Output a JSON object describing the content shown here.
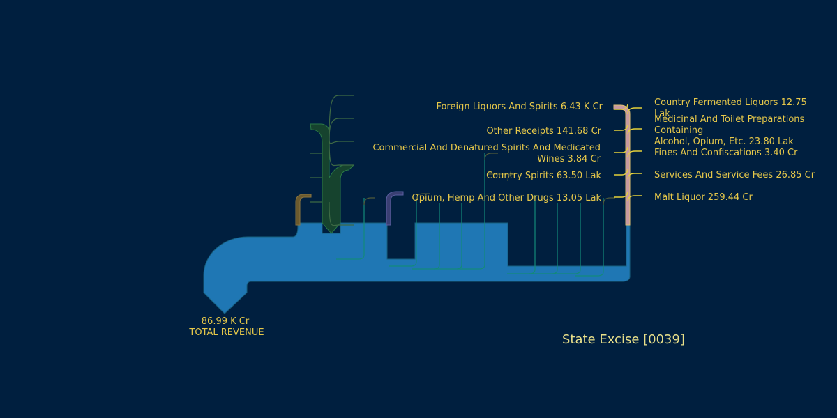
{
  "chart_data": {
    "type": "sankey",
    "title": "State Excise [0039]",
    "total": {
      "value_label": "86.99 K Cr",
      "label": "TOTAL REVENUE",
      "value_cr": 86990
    },
    "left_items": [
      {
        "name": "Foreign Liquors And Spirits",
        "value_label": "6.43 K Cr",
        "value_cr": 6430
      },
      {
        "name": "Other Receipts",
        "value_label": "141.68 Cr",
        "value_cr": 141.68
      },
      {
        "name": "Commercial And Denatured Spirits And Medicated Wines",
        "value_label": "3.84 Cr",
        "value_cr": 3.84
      },
      {
        "name": "Country Spirits",
        "value_label": "63.50 Lak",
        "value_cr": 0.635
      },
      {
        "name": "Opium, Hemp And Other Drugs",
        "value_label": "13.05 Lak",
        "value_cr": 0.1305
      }
    ],
    "right_items": [
      {
        "name": "Country Fermented Liquors",
        "value_label": "12.75 Lak",
        "value_cr": 0.1275
      },
      {
        "name": "Medicinal And Toilet Preparations Containing Alcohol, Opium, Etc.",
        "value_label": "23.80 Lak",
        "value_cr": 0.238
      },
      {
        "name": "Fines And Confiscations",
        "value_label": "3.40 Cr",
        "value_cr": 3.4
      },
      {
        "name": "Services And Service Fees",
        "value_label": "26.85 Cr",
        "value_cr": 26.85
      },
      {
        "name": "Malt Liquor",
        "value_label": "259.44 Cr",
        "value_cr": 259.44
      }
    ]
  },
  "labels": {
    "total_value": "86.99 K Cr",
    "total_name": "TOTAL REVENUE",
    "title": "State Excise [0039]",
    "l0": "Foreign Liquors And Spirits 6.43 K Cr",
    "l1": "Other Receipts 141.68 Cr",
    "l2a": "Commercial And Denatured Spirits And Medicated",
    "l2b": "Wines 3.84 Cr",
    "l3": "Country Spirits 63.50 Lak",
    "l4": "Opium, Hemp And Other Drugs 13.05 Lak",
    "r0a": "Country Fermented Liquors 12.75",
    "r0b": "Lak",
    "r1a": "Medicinal And Toilet Preparations",
    "r1b": "Containing",
    "r1c": "Alcohol, Opium, Etc. 23.80 Lak",
    "r2": "Fines And Confiscations 3.40 Cr",
    "r3": "Services And Service Fees 26.85 Cr",
    "r4": "Malt Liquor 259.44 Cr"
  },
  "colors": {
    "background": "#001f3f",
    "main_flow": "#1f77b4",
    "main_stroke": "#17607f",
    "foreign_liquors": "#16432e",
    "foreign_stroke": "#2a7a46",
    "opium_band": "#3a3f73",
    "malt_band": "#c79aa0",
    "thin_teal": "#138a7a",
    "thin_olive": "#4f5a3a",
    "yellow_link": "#e6d23a",
    "text": "#e6c84a"
  }
}
